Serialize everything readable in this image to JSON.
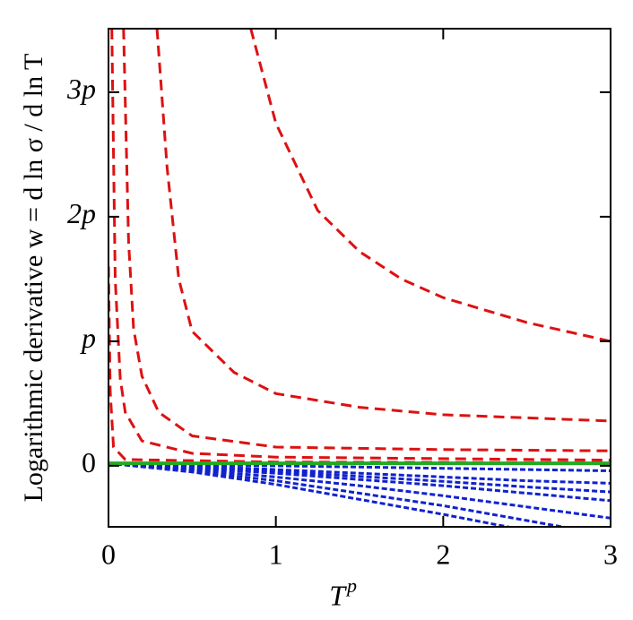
{
  "chart_data": {
    "type": "line",
    "ylabel": "Logarithmic derivative  w = d ln σ  / d ln T",
    "xlabel": {
      "base": "T",
      "sup": "p"
    },
    "xlim": [
      0,
      3
    ],
    "ylim": [
      -0.49,
      3.51
    ],
    "xticks": [
      0,
      1,
      2,
      3
    ],
    "yticks": [
      0,
      {
        "value": 1,
        "label": "p"
      },
      {
        "value": 2,
        "label": "2p"
      },
      {
        "value": 3,
        "label": "3p"
      }
    ],
    "series": [
      {
        "color": "#dd1111",
        "dash": "12 7",
        "x": [
          0.85,
          1,
          1.25,
          1.5,
          1.75,
          2,
          2.5,
          3
        ],
        "values": [
          3.51,
          2.75,
          2.05,
          1.72,
          1.5,
          1.35,
          1.15,
          1.0
        ]
      },
      {
        "color": "#dd1111",
        "dash": "12 7",
        "x": [
          0.29,
          0.35,
          0.42,
          0.5,
          0.75,
          1,
          1.5,
          2,
          3
        ],
        "values": [
          3.51,
          2.4,
          1.5,
          1.08,
          0.75,
          0.58,
          0.47,
          0.41,
          0.36
        ]
      },
      {
        "color": "#dd1111",
        "dash": "12 7",
        "x": [
          0.09,
          0.12,
          0.15,
          0.2,
          0.3,
          0.5,
          1,
          2,
          3
        ],
        "values": [
          3.51,
          1.8,
          1.1,
          0.72,
          0.43,
          0.24,
          0.15,
          0.13,
          0.12
        ]
      },
      {
        "color": "#dd1111",
        "dash": "12 7",
        "x": [
          0.02,
          0.04,
          0.07,
          0.1,
          0.2,
          0.5,
          1,
          3
        ],
        "values": [
          3.51,
          1.5,
          0.7,
          0.43,
          0.2,
          0.1,
          0.07,
          0.045
        ]
      },
      {
        "color": "#dd1111",
        "dash": "12 7",
        "x": [
          0,
          0.01,
          0.03,
          0.1,
          1,
          3
        ],
        "values": [
          1.6,
          0.6,
          0.15,
          0.05,
          0.03,
          0.025
        ]
      },
      {
        "color": "#1122cc",
        "dash": "6 3",
        "x": [
          0,
          0.5,
          1,
          1.5,
          2,
          2.5,
          3
        ],
        "values": [
          0.02,
          0.01,
          0,
          -0.01,
          -0.02,
          -0.03,
          -0.04
        ]
      },
      {
        "color": "#1122cc",
        "dash": "6 3",
        "x": [
          0,
          0.5,
          1,
          1.5,
          2,
          2.5,
          3
        ],
        "values": [
          0.02,
          0,
          -0.03,
          -0.06,
          -0.09,
          -0.12,
          -0.14
        ]
      },
      {
        "color": "#1122cc",
        "dash": "6 3",
        "x": [
          0,
          0.5,
          1,
          1.5,
          2,
          2.5,
          3
        ],
        "values": [
          0.02,
          -0.01,
          -0.045,
          -0.085,
          -0.125,
          -0.17,
          -0.21
        ]
      },
      {
        "color": "#1122cc",
        "dash": "6 3",
        "x": [
          0,
          0.5,
          1,
          1.5,
          2,
          2.5,
          3
        ],
        "values": [
          0.02,
          -0.02,
          -0.06,
          -0.11,
          -0.16,
          -0.22,
          -0.28
        ]
      },
      {
        "color": "#1122cc",
        "dash": "6 3",
        "x": [
          0,
          0.5,
          1,
          1.5,
          2,
          2.5,
          3
        ],
        "values": [
          0.02,
          -0.03,
          -0.09,
          -0.16,
          -0.24,
          -0.33,
          -0.42
        ]
      },
      {
        "color": "#1122cc",
        "dash": "6 3",
        "x": [
          0,
          0.5,
          1,
          1.5,
          2,
          2.5,
          3
        ],
        "values": [
          0.02,
          -0.04,
          -0.12,
          -0.22,
          -0.32,
          -0.44,
          -0.56
        ]
      },
      {
        "color": "#1122cc",
        "dash": "6 3",
        "x": [
          0,
          0.5,
          1,
          1.5,
          2,
          2.5,
          3
        ],
        "values": [
          0.02,
          -0.05,
          -0.15,
          -0.27,
          -0.39,
          -0.52,
          -0.66
        ]
      },
      {
        "color": "#22aa22",
        "dash": "none",
        "x": [
          0,
          3
        ],
        "values": [
          0.02,
          0.02
        ]
      }
    ]
  }
}
